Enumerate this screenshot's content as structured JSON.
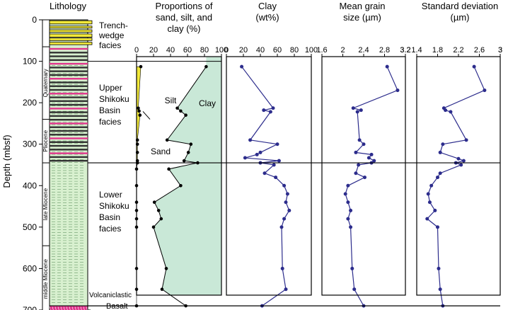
{
  "depth_axis": {
    "label": "Depth (mbsf)",
    "ticks": [
      0,
      100,
      200,
      300,
      400,
      500,
      600,
      700
    ],
    "range": [
      0,
      720
    ]
  },
  "lithology": {
    "title": "Lithology",
    "epochs": [
      {
        "name": "Quaternary",
        "top": 65,
        "bottom": 240
      },
      {
        "name": "Pliocene",
        "top": 240,
        "bottom": 345
      },
      {
        "name": "late Miocene",
        "top": 345,
        "bottom": 545
      },
      {
        "name": "middle Miocene",
        "top": 545,
        "bottom": 705
      }
    ],
    "units": [
      {
        "name": "Trench-wedge facies",
        "top": 0,
        "bottom": 100
      },
      {
        "name": "Upper Shikoku Basin facies",
        "top": 100,
        "bottom": 345
      },
      {
        "name": "Lower Shikoku Basin facies",
        "top": 345,
        "bottom": 690
      },
      {
        "name": "Volcaniclastic",
        "top": 690,
        "bottom": 712
      },
      {
        "name": "Basalt",
        "top": 712,
        "bottom": 730
      }
    ],
    "labels": {
      "trench": [
        "Trench-",
        "wedge",
        "facies"
      ],
      "upper": [
        "Upper",
        "Shikoku",
        "Basin",
        "facies"
      ],
      "lower": [
        "Lower",
        "Shikoku",
        "Basin",
        "facies"
      ],
      "volcaniclastic": "Volcaniclastic",
      "basalt": "Basalt"
    },
    "colors": {
      "sand": "#f2e93a",
      "hemipelagic": "#d8f0cf",
      "ash": "#e0358c",
      "volcaniclastic": "#e0358c",
      "basalt": "#2e9a3f"
    }
  },
  "boundaries": [
    100,
    345,
    690
  ],
  "chart_data": [
    {
      "type": "area",
      "title": "Proportions of sand, silt, and clay (%)",
      "title_lines": [
        "Proportions of",
        "sand, silt, and",
        "clay (%)"
      ],
      "xlim": [
        0,
        100
      ],
      "xticks": [
        0,
        20,
        40,
        60,
        80
      ],
      "area_labels": {
        "silt": "Silt",
        "clay": "Clay",
        "sand": "Sand"
      },
      "colors": {
        "sand": "#f2e93a",
        "silt": "#ffffff",
        "clay": "#c9e8d7"
      },
      "depth": [
        113,
        213,
        220,
        230,
        290,
        300,
        320,
        340,
        345,
        360,
        400,
        440,
        460,
        480,
        500,
        600,
        650,
        690
      ],
      "sand_pct": [
        5,
        2,
        3,
        4,
        1,
        1,
        1,
        1,
        1,
        0,
        0,
        0,
        0,
        0,
        0,
        0,
        0,
        0
      ],
      "sand_plus_silt_pct": [
        82,
        48,
        52,
        58,
        36,
        64,
        61,
        56,
        72,
        38,
        52,
        21,
        26,
        29,
        20,
        35,
        30,
        58
      ]
    },
    {
      "type": "line",
      "title": "Clay (wt%)",
      "title_lines": [
        "Clay",
        "(wt%)"
      ],
      "xlim": [
        0,
        100
      ],
      "xticks": [
        0,
        20,
        40,
        60,
        80
      ],
      "color": "#2c2c8c",
      "depth": [
        113,
        213,
        218,
        222,
        290,
        300,
        320,
        325,
        333,
        340,
        345,
        350,
        370,
        380,
        400,
        420,
        440,
        460,
        480,
        500,
        600,
        650,
        690
      ],
      "values": [
        18,
        55,
        44,
        52,
        28,
        60,
        40,
        36,
        22,
        62,
        40,
        56,
        45,
        58,
        68,
        72,
        70,
        74,
        68,
        65,
        66,
        70,
        42
      ]
    },
    {
      "type": "line",
      "title": "Mean grain size (µm)",
      "title_lines": [
        "Mean grain",
        "size (µm)"
      ],
      "xlim": [
        1.6,
        3.2
      ],
      "xticks": [
        1.6,
        2.0,
        2.4,
        2.8,
        3.2
      ],
      "color": "#2c2c8c",
      "depth": [
        113,
        170,
        213,
        218,
        222,
        290,
        300,
        320,
        325,
        333,
        340,
        345,
        350,
        370,
        380,
        400,
        420,
        440,
        460,
        480,
        500,
        600,
        650,
        690
      ],
      "values": [
        2.85,
        3.05,
        2.2,
        2.35,
        2.28,
        2.32,
        2.4,
        2.25,
        2.55,
        2.5,
        2.6,
        2.55,
        2.3,
        2.25,
        2.42,
        2.1,
        2.05,
        2.1,
        2.15,
        2.1,
        2.15,
        2.18,
        2.22,
        2.4
      ]
    },
    {
      "type": "line",
      "title": "Standard deviation (µm)",
      "title_lines": [
        "Standard deviation",
        "(µm)"
      ],
      "xlim": [
        1.4,
        3.0
      ],
      "xticks": [
        1.4,
        1.8,
        2.2,
        2.6,
        3.0
      ],
      "color": "#2c2c8c",
      "depth": [
        113,
        170,
        213,
        218,
        222,
        290,
        300,
        320,
        335,
        340,
        345,
        350,
        370,
        380,
        400,
        420,
        440,
        460,
        480,
        500,
        600,
        650,
        690
      ],
      "values": [
        2.5,
        2.7,
        1.92,
        1.95,
        2.05,
        2.35,
        1.9,
        1.85,
        2.2,
        2.3,
        2.15,
        2.25,
        1.85,
        1.8,
        1.68,
        1.62,
        1.65,
        1.75,
        1.6,
        1.8,
        1.82,
        1.85,
        1.9
      ]
    }
  ]
}
